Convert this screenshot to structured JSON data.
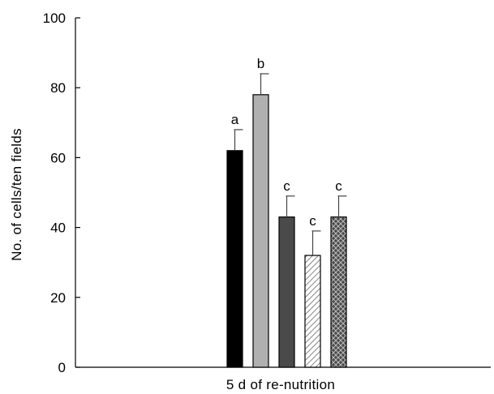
{
  "chart_data": {
    "type": "bar",
    "xlabel": "5 d of re-nutrition",
    "ylabel": "No. of cells/ten fields",
    "ylim": [
      0,
      100
    ],
    "yticks": [
      0,
      20,
      40,
      60,
      80,
      100
    ],
    "grid": false,
    "legend": "none",
    "series": [
      {
        "value": 62,
        "error": 6,
        "label": "a",
        "fill": "#000000",
        "pattern": "solid"
      },
      {
        "value": 78,
        "error": 6,
        "label": "b",
        "fill": "#b0b0b0",
        "pattern": "solid"
      },
      {
        "value": 43,
        "error": 6,
        "label": "c",
        "fill": "#4a4a4a",
        "pattern": "solid"
      },
      {
        "value": 32,
        "error": 7,
        "label": "c",
        "fill": "#ffffff",
        "pattern": "diagonal-hatch"
      },
      {
        "value": 43,
        "error": 6,
        "label": "c",
        "fill": "#5a5a5a",
        "pattern": "crosshatch"
      }
    ]
  }
}
